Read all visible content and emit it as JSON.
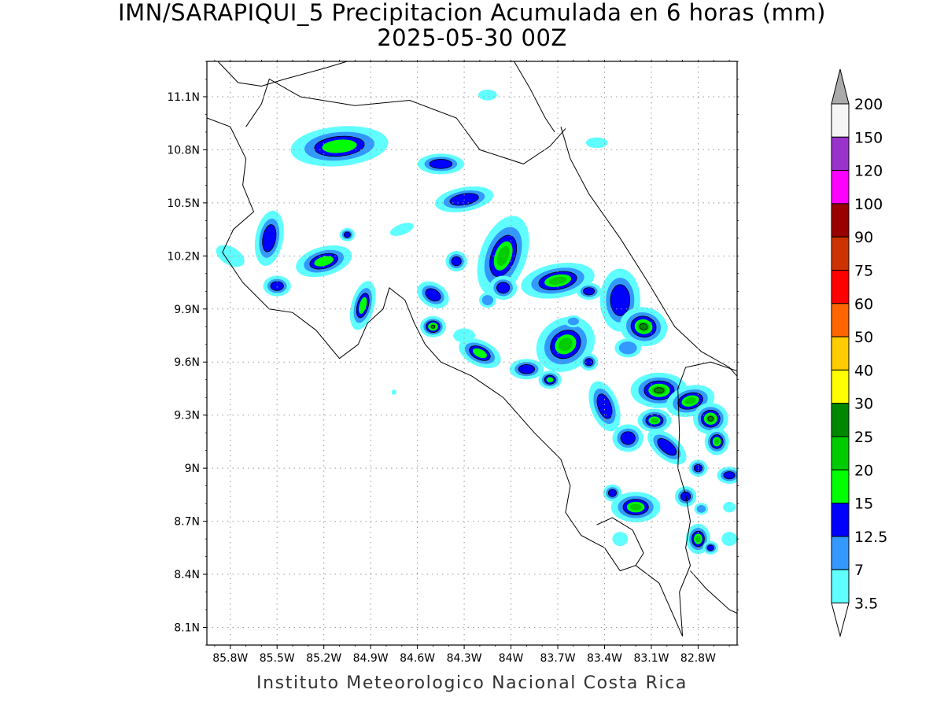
{
  "title": "IMN/SARAPIQUI_5 Precipitacion Acumulada en 6 horas (mm)",
  "subtitle": "2025-05-30 00Z",
  "footer": "Instituto Meteorologico Nacional Costa Rica",
  "map": {
    "lon_range": [
      -85.95,
      -82.55
    ],
    "lat_range": [
      8.0,
      11.3
    ],
    "lat_ticks": [
      {
        "value": 11.1,
        "label": "11.1N"
      },
      {
        "value": 10.8,
        "label": "10.8N"
      },
      {
        "value": 10.5,
        "label": "10.5N"
      },
      {
        "value": 10.2,
        "label": "10.2N"
      },
      {
        "value": 9.9,
        "label": "9.9N"
      },
      {
        "value": 9.6,
        "label": "9.6N"
      },
      {
        "value": 9.3,
        "label": "9.3N"
      },
      {
        "value": 9.0,
        "label": "9N"
      },
      {
        "value": 8.7,
        "label": "8.7N"
      },
      {
        "value": 8.4,
        "label": "8.4N"
      },
      {
        "value": 8.1,
        "label": "8.1N"
      }
    ],
    "lon_ticks": [
      {
        "value": -85.8,
        "label": "85.8W"
      },
      {
        "value": -85.5,
        "label": "85.5W"
      },
      {
        "value": -85.2,
        "label": "85.2W"
      },
      {
        "value": -84.9,
        "label": "84.9W"
      },
      {
        "value": -84.6,
        "label": "84.6W"
      },
      {
        "value": -84.3,
        "label": "84.3W"
      },
      {
        "value": -84.0,
        "label": "84W"
      },
      {
        "value": -83.7,
        "label": "83.7W"
      },
      {
        "value": -83.4,
        "label": "83.4W"
      },
      {
        "value": -83.1,
        "label": "83.1W"
      },
      {
        "value": -82.8,
        "label": "82.8W"
      }
    ],
    "coast": {
      "nicaragua_lake_shore": [
        [
          -85.88,
          11.3
        ],
        [
          -85.75,
          11.18
        ],
        [
          -85.6,
          11.16
        ],
        [
          -85.45,
          11.2
        ],
        [
          -85.2,
          11.26
        ],
        [
          -85.05,
          11.3
        ]
      ],
      "north_border": [
        [
          -85.7,
          10.93
        ],
        [
          -85.6,
          11.06
        ],
        [
          -85.55,
          11.2
        ],
        [
          -85.35,
          11.1
        ],
        [
          -85.0,
          11.05
        ],
        [
          -84.65,
          11.08
        ],
        [
          -84.35,
          10.98
        ],
        [
          -84.2,
          10.8
        ],
        [
          -83.92,
          10.72
        ],
        [
          -83.75,
          10.82
        ],
        [
          -83.65,
          10.92
        ]
      ],
      "san_juan_delta": [
        [
          -83.98,
          11.3
        ],
        [
          -83.88,
          11.15
        ],
        [
          -83.78,
          10.98
        ],
        [
          -83.72,
          10.9
        ]
      ],
      "caribbean": [
        [
          -83.68,
          10.93
        ],
        [
          -83.62,
          10.75
        ],
        [
          -83.5,
          10.55
        ],
        [
          -83.3,
          10.3
        ],
        [
          -83.12,
          10.05
        ],
        [
          -82.95,
          9.8
        ],
        [
          -82.78,
          9.66
        ],
        [
          -82.6,
          9.57
        ],
        [
          -82.55,
          9.52
        ]
      ],
      "pacific_west": [
        [
          -85.95,
          10.98
        ],
        [
          -85.8,
          10.93
        ],
        [
          -85.7,
          10.75
        ],
        [
          -85.72,
          10.6
        ],
        [
          -85.65,
          10.45
        ],
        [
          -85.78,
          10.35
        ],
        [
          -85.85,
          10.22
        ],
        [
          -85.72,
          10.05
        ],
        [
          -85.55,
          9.9
        ],
        [
          -85.4,
          9.88
        ],
        [
          -85.25,
          9.78
        ],
        [
          -85.1,
          9.62
        ],
        [
          -84.98,
          9.7
        ],
        [
          -84.92,
          9.82
        ],
        [
          -84.82,
          9.9
        ],
        [
          -84.78,
          10.02
        ],
        [
          -84.68,
          9.95
        ],
        [
          -84.62,
          9.82
        ],
        [
          -84.55,
          9.7
        ],
        [
          -84.45,
          9.6
        ],
        [
          -84.25,
          9.52
        ],
        [
          -84.05,
          9.4
        ],
        [
          -83.85,
          9.2
        ],
        [
          -83.68,
          9.05
        ],
        [
          -83.62,
          8.9
        ],
        [
          -83.65,
          8.75
        ],
        [
          -83.55,
          8.62
        ],
        [
          -83.4,
          8.55
        ],
        [
          -83.3,
          8.42
        ],
        [
          -83.2,
          8.45
        ],
        [
          -83.05,
          8.35
        ],
        [
          -82.9,
          8.05
        ]
      ],
      "golfo_dulce": [
        [
          -83.45,
          8.68
        ],
        [
          -83.35,
          8.72
        ],
        [
          -83.22,
          8.65
        ],
        [
          -83.15,
          8.52
        ],
        [
          -83.2,
          8.45
        ]
      ],
      "panama_border": [
        [
          -82.55,
          9.55
        ],
        [
          -82.72,
          9.6
        ],
        [
          -82.88,
          9.57
        ],
        [
          -82.93,
          9.45
        ],
        [
          -82.92,
          9.2
        ],
        [
          -82.93,
          9.0
        ],
        [
          -82.88,
          8.85
        ],
        [
          -82.85,
          8.7
        ],
        [
          -82.88,
          8.55
        ],
        [
          -82.85,
          8.45
        ],
        [
          -82.92,
          8.3
        ],
        [
          -82.9,
          8.05
        ]
      ],
      "panama_south": [
        [
          -82.85,
          8.42
        ],
        [
          -82.75,
          8.32
        ],
        [
          -82.6,
          8.2
        ],
        [
          -82.55,
          8.18
        ]
      ]
    },
    "rain_fields": [
      {
        "lon": -85.1,
        "lat": 10.82,
        "rx": 0.3,
        "ry": 0.1,
        "rot": -5,
        "level": 3
      },
      {
        "lon": -84.45,
        "lat": 10.72,
        "rx": 0.14,
        "ry": 0.05,
        "rot": 0,
        "level": 2
      },
      {
        "lon": -84.3,
        "lat": 10.52,
        "rx": 0.18,
        "ry": 0.06,
        "rot": -10,
        "level": 2
      },
      {
        "lon": -85.55,
        "lat": 10.3,
        "rx": 0.08,
        "ry": 0.15,
        "rot": 10,
        "level": 2
      },
      {
        "lon": -85.2,
        "lat": 10.17,
        "rx": 0.17,
        "ry": 0.07,
        "rot": -15,
        "level": 3
      },
      {
        "lon": -85.5,
        "lat": 10.03,
        "rx": 0.08,
        "ry": 0.05,
        "rot": 0,
        "level": 2
      },
      {
        "lon": -84.95,
        "lat": 9.92,
        "rx": 0.06,
        "ry": 0.13,
        "rot": 15,
        "level": 3
      },
      {
        "lon": -84.05,
        "lat": 10.2,
        "rx": 0.13,
        "ry": 0.22,
        "rot": 20,
        "level": 4
      },
      {
        "lon": -83.7,
        "lat": 10.06,
        "rx": 0.22,
        "ry": 0.08,
        "rot": -10,
        "level": 4
      },
      {
        "lon": -83.3,
        "lat": 9.95,
        "rx": 0.12,
        "ry": 0.17,
        "rot": 0,
        "level": 2
      },
      {
        "lon": -83.15,
        "lat": 9.8,
        "rx": 0.13,
        "ry": 0.09,
        "rot": 10,
        "level": 5
      },
      {
        "lon": -83.65,
        "lat": 9.7,
        "rx": 0.18,
        "ry": 0.13,
        "rot": -35,
        "level": 4
      },
      {
        "lon": -84.5,
        "lat": 9.8,
        "rx": 0.06,
        "ry": 0.04,
        "rot": 0,
        "level": 5
      },
      {
        "lon": -84.5,
        "lat": 9.98,
        "rx": 0.1,
        "ry": 0.06,
        "rot": 30,
        "level": 2
      },
      {
        "lon": -84.2,
        "lat": 9.65,
        "rx": 0.13,
        "ry": 0.06,
        "rot": 25,
        "level": 3
      },
      {
        "lon": -83.9,
        "lat": 9.56,
        "rx": 0.1,
        "ry": 0.05,
        "rot": 0,
        "level": 2
      },
      {
        "lon": -83.4,
        "lat": 9.35,
        "rx": 0.08,
        "ry": 0.14,
        "rot": -20,
        "level": 2
      },
      {
        "lon": -83.05,
        "lat": 9.44,
        "rx": 0.16,
        "ry": 0.08,
        "rot": 0,
        "level": 5
      },
      {
        "lon": -82.85,
        "lat": 9.38,
        "rx": 0.14,
        "ry": 0.07,
        "rot": -15,
        "level": 4
      },
      {
        "lon": -82.72,
        "lat": 9.28,
        "rx": 0.09,
        "ry": 0.07,
        "rot": 0,
        "level": 5
      },
      {
        "lon": -83.08,
        "lat": 9.27,
        "rx": 0.09,
        "ry": 0.05,
        "rot": 0,
        "level": 4
      },
      {
        "lon": -83.25,
        "lat": 9.17,
        "rx": 0.09,
        "ry": 0.07,
        "rot": 0,
        "level": 2
      },
      {
        "lon": -83.0,
        "lat": 9.12,
        "rx": 0.14,
        "ry": 0.06,
        "rot": 40,
        "level": 2
      },
      {
        "lon": -82.68,
        "lat": 9.15,
        "rx": 0.06,
        "ry": 0.06,
        "rot": 0,
        "level": 4
      },
      {
        "lon": -82.8,
        "lat": 9.0,
        "rx": 0.05,
        "ry": 0.04,
        "rot": 0,
        "level": 2
      },
      {
        "lon": -82.6,
        "lat": 8.96,
        "rx": 0.07,
        "ry": 0.04,
        "rot": 0,
        "level": 2
      },
      {
        "lon": -83.2,
        "lat": 8.78,
        "rx": 0.14,
        "ry": 0.07,
        "rot": 0,
        "level": 4
      },
      {
        "lon": -83.35,
        "lat": 8.86,
        "rx": 0.05,
        "ry": 0.04,
        "rot": 0,
        "level": 2
      },
      {
        "lon": -82.88,
        "lat": 8.84,
        "rx": 0.06,
        "ry": 0.05,
        "rot": 0,
        "level": 2
      },
      {
        "lon": -82.8,
        "lat": 8.6,
        "rx": 0.06,
        "ry": 0.07,
        "rot": 0,
        "level": 4
      },
      {
        "lon": -82.72,
        "lat": 8.55,
        "rx": 0.04,
        "ry": 0.03,
        "rot": 0,
        "level": 2
      },
      {
        "lon": -82.78,
        "lat": 8.77,
        "rx": 0.04,
        "ry": 0.03,
        "rot": 0,
        "level": 1
      },
      {
        "lon": -84.05,
        "lat": 10.02,
        "rx": 0.08,
        "ry": 0.06,
        "rot": 0,
        "level": 2
      },
      {
        "lon": -84.35,
        "lat": 10.17,
        "rx": 0.06,
        "ry": 0.05,
        "rot": 0,
        "level": 2
      },
      {
        "lon": -85.05,
        "lat": 10.32,
        "rx": 0.04,
        "ry": 0.03,
        "rot": 0,
        "level": 2
      },
      {
        "lon": -83.75,
        "lat": 9.5,
        "rx": 0.06,
        "ry": 0.04,
        "rot": 0,
        "level": 3
      },
      {
        "lon": -83.5,
        "lat": 9.6,
        "rx": 0.05,
        "ry": 0.04,
        "rot": 0,
        "level": 2
      },
      {
        "lon": -83.5,
        "lat": 10.0,
        "rx": 0.07,
        "ry": 0.04,
        "rot": 0,
        "level": 2
      },
      {
        "lon": -83.6,
        "lat": 9.83,
        "rx": 0.05,
        "ry": 0.03,
        "rot": 0,
        "level": 1
      },
      {
        "lon": -83.25,
        "lat": 9.68,
        "rx": 0.08,
        "ry": 0.05,
        "rot": 0,
        "level": 1
      },
      {
        "lon": -84.15,
        "lat": 9.95,
        "rx": 0.05,
        "ry": 0.04,
        "rot": 0,
        "level": 1
      },
      {
        "lon": -84.7,
        "lat": 10.35,
        "rx": 0.08,
        "ry": 0.03,
        "rot": -20,
        "level": 0
      },
      {
        "lon": -84.15,
        "lat": 11.11,
        "rx": 0.06,
        "ry": 0.03,
        "rot": 0,
        "level": 0
      },
      {
        "lon": -83.45,
        "lat": 10.84,
        "rx": 0.07,
        "ry": 0.03,
        "rot": 0,
        "level": 0
      },
      {
        "lon": -84.3,
        "lat": 9.75,
        "rx": 0.07,
        "ry": 0.04,
        "rot": 0,
        "level": 0
      },
      {
        "lon": -85.8,
        "lat": 10.2,
        "rx": 0.1,
        "ry": 0.05,
        "rot": 30,
        "level": 0
      },
      {
        "lon": -83.3,
        "lat": 8.6,
        "rx": 0.05,
        "ry": 0.04,
        "rot": 0,
        "level": 0
      },
      {
        "lon": -82.6,
        "lat": 8.6,
        "rx": 0.05,
        "ry": 0.04,
        "rot": 0,
        "level": 0
      },
      {
        "lon": -82.6,
        "lat": 8.78,
        "rx": 0.04,
        "ry": 0.03,
        "rot": 0,
        "level": 0
      },
      {
        "lon": -84.75,
        "lat": 9.43,
        "rx": 0.015,
        "ry": 0.015,
        "rot": 0,
        "level": 0
      }
    ]
  },
  "legend": {
    "levels": [
      {
        "label": "3.5",
        "color": "#5ffeff"
      },
      {
        "label": "7",
        "color": "#3399ff"
      },
      {
        "label": "12.5",
        "color": "#0000ff"
      },
      {
        "label": "15",
        "color": "#00ff00"
      },
      {
        "label": "20",
        "color": "#00cc00"
      },
      {
        "label": "25",
        "color": "#008800"
      },
      {
        "label": "30",
        "color": "#ffff00"
      },
      {
        "label": "40",
        "color": "#ffcc00"
      },
      {
        "label": "50",
        "color": "#ff6600"
      },
      {
        "label": "60",
        "color": "#ff0000"
      },
      {
        "label": "75",
        "color": "#cc3300"
      },
      {
        "label": "90",
        "color": "#990000"
      },
      {
        "label": "100",
        "color": "#ff00ff"
      },
      {
        "label": "120",
        "color": "#9933cc"
      },
      {
        "label": "150",
        "color": "#f5f5f5"
      },
      {
        "label": "200",
        "color": "#aaaaaa"
      }
    ],
    "over_color": "#aaaaaa",
    "under_color": "#ffffff"
  }
}
